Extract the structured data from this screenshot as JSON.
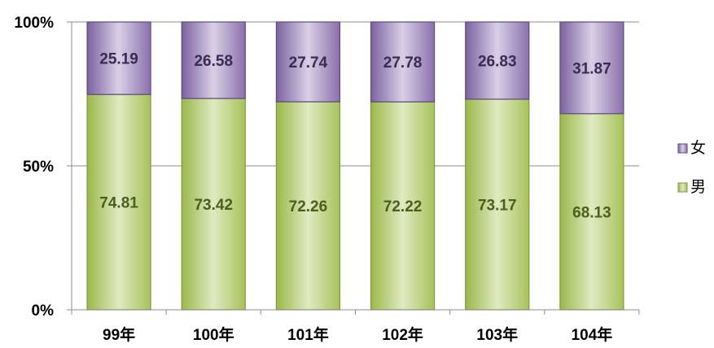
{
  "chart_data": {
    "type": "bar",
    "stacked": true,
    "percent": true,
    "categories": [
      "99年",
      "100年",
      "101年",
      "102年",
      "103年",
      "104年"
    ],
    "series": [
      {
        "name": "男",
        "values": [
          74.81,
          73.42,
          72.26,
          72.22,
          73.17,
          68.13
        ],
        "color": "#a9c45e"
      },
      {
        "name": "女",
        "values": [
          25.19,
          26.58,
          27.74,
          27.78,
          26.83,
          31.87
        ],
        "color": "#8c73ad"
      }
    ],
    "yticks": [
      "0%",
      "50%",
      "100%"
    ],
    "ylim": [
      0,
      100
    ],
    "grid": true,
    "legend_position": "right"
  }
}
